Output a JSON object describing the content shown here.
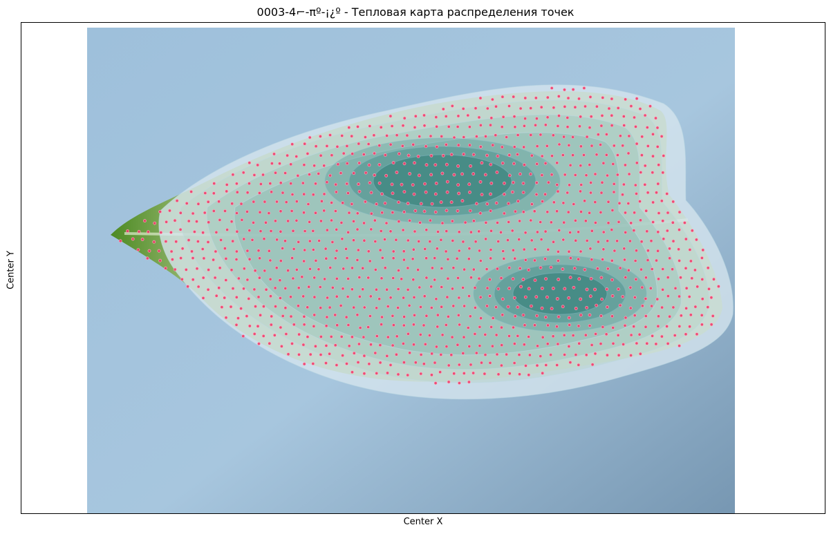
{
  "chart_data": {
    "type": "heatmap",
    "title": "0003-4⌐-πº-¡¿º - Тепловая карта распределения точек",
    "xlabel": "Center X",
    "ylabel": "Center Y",
    "grid": false,
    "ticks_visible": false,
    "background": "leaf photograph",
    "density_levels": 6,
    "density_peaks": [
      {
        "name": "upper-lobe"
      },
      {
        "name": "lower-lobe"
      }
    ],
    "colors": {
      "photo_background": "#9fbfd6",
      "leaf": "#8fb36a",
      "leaf_tip": "#4f8f25",
      "density_light": "#cfe3ec",
      "density_dark": "#1f6f6a",
      "points": "#e8336a",
      "axes_frame": "#000000"
    }
  }
}
